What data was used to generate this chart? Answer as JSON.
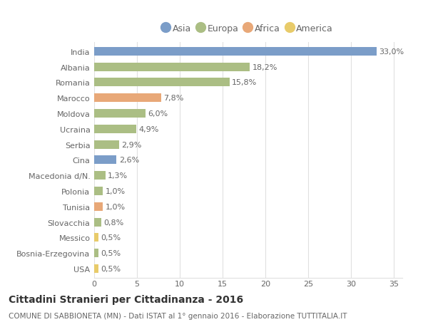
{
  "categories": [
    "India",
    "Albania",
    "Romania",
    "Marocco",
    "Moldova",
    "Ucraina",
    "Serbia",
    "Cina",
    "Macedonia d/N.",
    "Polonia",
    "Tunisia",
    "Slovacchia",
    "Messico",
    "Bosnia-Erzegovina",
    "USA"
  ],
  "values": [
    33.0,
    18.2,
    15.8,
    7.8,
    6.0,
    4.9,
    2.9,
    2.6,
    1.3,
    1.0,
    1.0,
    0.8,
    0.5,
    0.5,
    0.5
  ],
  "continents": [
    "Asia",
    "Europa",
    "Europa",
    "Africa",
    "Europa",
    "Europa",
    "Europa",
    "Asia",
    "Europa",
    "Europa",
    "Africa",
    "Europa",
    "America",
    "Europa",
    "America"
  ],
  "continent_colors": {
    "Asia": "#7b9dc8",
    "Europa": "#abbe84",
    "Africa": "#e8a878",
    "America": "#e8cb6a"
  },
  "legend_order": [
    "Asia",
    "Europa",
    "Africa",
    "America"
  ],
  "title": "Cittadini Stranieri per Cittadinanza - 2016",
  "subtitle": "COMUNE DI SABBIONETA (MN) - Dati ISTAT al 1° gennaio 2016 - Elaborazione TUTTITALIA.IT",
  "xlim": [
    0,
    36
  ],
  "xticks": [
    0,
    5,
    10,
    15,
    20,
    25,
    30,
    35
  ],
  "background_color": "#ffffff",
  "grid_color": "#e0e0e0",
  "bar_height": 0.55,
  "title_fontsize": 10,
  "subtitle_fontsize": 7.5,
  "tick_fontsize": 8,
  "value_fontsize": 8,
  "legend_fontsize": 9
}
